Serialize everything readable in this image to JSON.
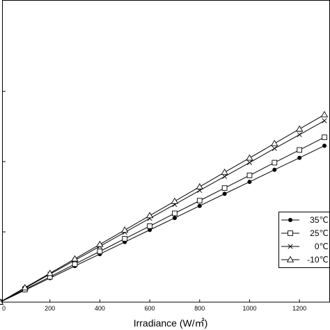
{
  "chart_data": {
    "type": "line",
    "title": "",
    "xlabel": "Irradiance (W/㎡)",
    "ylabel": "",
    "xlim": [
      0,
      1300
    ],
    "ylim": [
      0,
      2.15
    ],
    "x_ticks": [
      0,
      200,
      400,
      600,
      800,
      1000,
      1200
    ],
    "x_tick_labels": [
      "0",
      "200",
      "400",
      "600",
      "800",
      "1000",
      "1200"
    ],
    "y_ticks": [
      0.5,
      1.0,
      1.5
    ],
    "grid": false,
    "legend_position": "lower-right",
    "x": [
      0,
      100,
      200,
      300,
      400,
      500,
      600,
      700,
      800,
      900,
      1000,
      1100,
      1200,
      1300
    ],
    "series": [
      {
        "name": "35℃",
        "marker": "filled-circle",
        "values": [
          0.0,
          0.085,
          0.171,
          0.257,
          0.342,
          0.428,
          0.514,
          0.599,
          0.685,
          0.771,
          0.856,
          0.942,
          1.027,
          1.113
        ]
      },
      {
        "name": "25℃",
        "marker": "open-square",
        "values": [
          0.0,
          0.09,
          0.18,
          0.271,
          0.361,
          0.451,
          0.541,
          0.632,
          0.722,
          0.812,
          0.902,
          0.993,
          1.083,
          1.173
        ]
      },
      {
        "name": "0℃",
        "marker": "cross",
        "values": [
          0.0,
          0.099,
          0.199,
          0.298,
          0.397,
          0.497,
          0.596,
          0.695,
          0.795,
          0.894,
          0.993,
          1.093,
          1.192,
          1.291
        ]
      },
      {
        "name": "-10℃",
        "marker": "open-triangle",
        "values": [
          0.0,
          0.103,
          0.205,
          0.308,
          0.411,
          0.513,
          0.616,
          0.718,
          0.821,
          0.924,
          1.026,
          1.129,
          1.232,
          1.334
        ]
      }
    ]
  }
}
